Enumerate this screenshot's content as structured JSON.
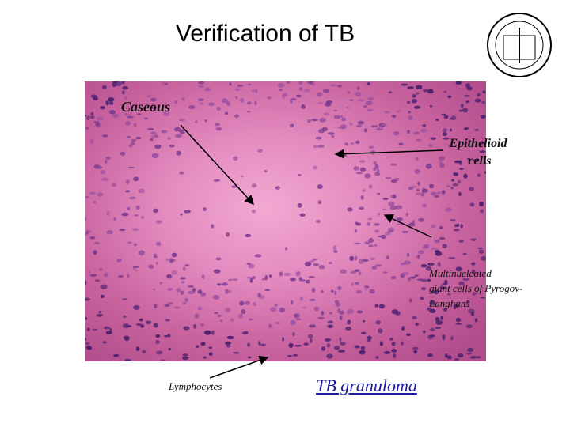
{
  "header": {
    "title": "Verification of TB"
  },
  "image": {
    "labels": {
      "caseous": [
        "Caseous"
      ],
      "epithelioid": [
        "Epithelioid",
        "cells"
      ],
      "giant_cells": [
        "Multinucleated",
        "giant cells of Pyrogov-",
        "Langhans"
      ],
      "lymphocytes": [
        "Lymphocytes"
      ]
    }
  },
  "caption": "TB granuloma"
}
